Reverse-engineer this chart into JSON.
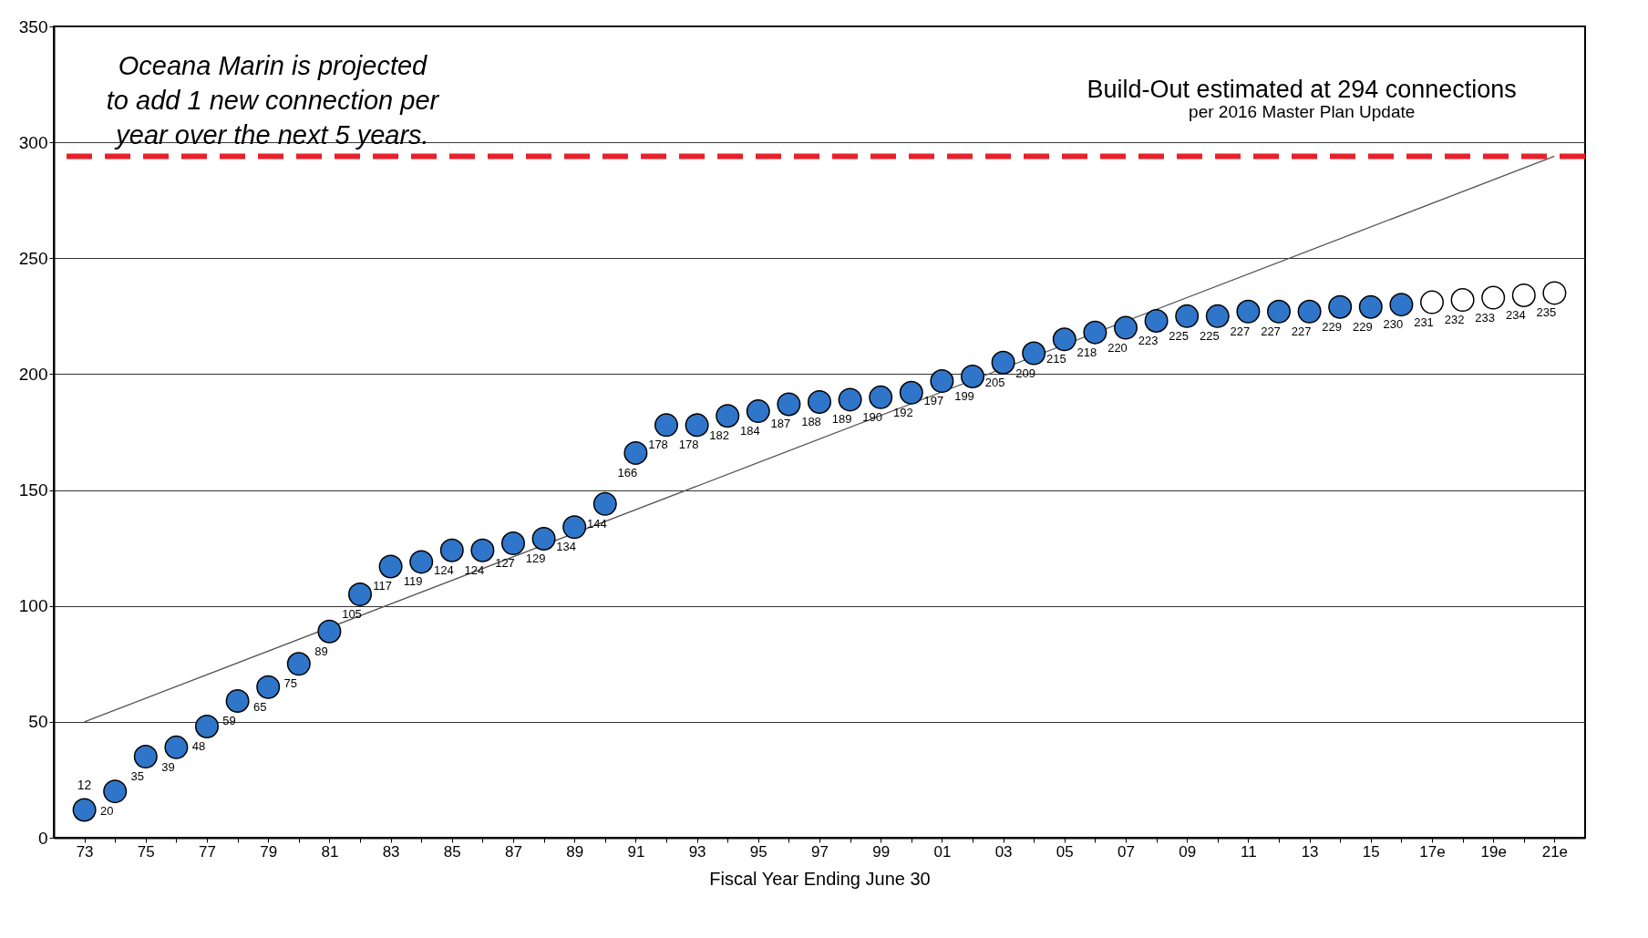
{
  "chart_data": {
    "type": "scatter",
    "xlabel": "Fiscal Year Ending June 30",
    "categories": [
      "73",
      null,
      "75",
      null,
      "77",
      null,
      "79",
      null,
      "81",
      null,
      "83",
      null,
      "85",
      null,
      "87",
      null,
      "89",
      null,
      "91",
      null,
      "93",
      null,
      "95",
      null,
      "97",
      null,
      "99",
      null,
      "01",
      null,
      "03",
      null,
      "05",
      null,
      "07",
      null,
      "09",
      null,
      "11",
      null,
      "13",
      null,
      "15",
      null,
      "17e",
      null,
      "19e",
      null,
      "21e"
    ],
    "series": [
      {
        "color": "#2f75c9",
        "values": [
          12,
          20,
          35,
          39,
          48,
          59,
          65,
          75,
          89,
          105,
          117,
          119,
          124,
          124,
          127,
          129,
          134,
          144,
          166,
          178,
          178,
          182,
          184,
          187,
          188,
          189,
          190,
          192,
          197,
          199,
          205,
          209,
          215,
          218,
          220,
          223,
          225,
          225,
          227,
          227,
          227,
          229,
          229,
          230,
          null,
          null,
          null,
          null,
          null
        ],
        "value_labels": [
          "12",
          "20",
          "35",
          "39",
          "48",
          "59",
          "65",
          "75",
          "89",
          "105",
          "117",
          "119",
          "124",
          "124",
          "127",
          "129",
          "134",
          "144",
          "166",
          "178",
          "178",
          "182",
          "184",
          "187",
          "188",
          "189",
          "190",
          "192",
          "197",
          "199",
          "205",
          "209",
          "215",
          "218",
          "220",
          "223",
          "225",
          "225",
          "227",
          "227",
          "227",
          "229",
          "229",
          "230",
          null,
          null,
          null,
          null,
          null
        ]
      },
      {
        "color": "#ffffff",
        "values": [
          null,
          null,
          null,
          null,
          null,
          null,
          null,
          null,
          null,
          null,
          null,
          null,
          null,
          null,
          null,
          null,
          null,
          null,
          null,
          null,
          null,
          null,
          null,
          null,
          null,
          null,
          null,
          null,
          null,
          null,
          null,
          null,
          null,
          null,
          null,
          null,
          null,
          null,
          null,
          null,
          null,
          null,
          null,
          null,
          231,
          232,
          233,
          234,
          235
        ],
        "value_labels": [
          null,
          null,
          null,
          null,
          null,
          null,
          null,
          null,
          null,
          null,
          null,
          null,
          null,
          null,
          null,
          null,
          null,
          null,
          null,
          null,
          null,
          null,
          null,
          null,
          null,
          null,
          null,
          null,
          null,
          null,
          null,
          null,
          null,
          null,
          null,
          null,
          null,
          null,
          null,
          null,
          null,
          null,
          null,
          null,
          "231",
          "232",
          "233",
          "234",
          "235"
        ]
      },
      {
        "type": "line",
        "color": "#555555",
        "marker": "none",
        "x": [
          "73",
          "21e"
        ],
        "values": [
          50,
          294
        ]
      }
    ],
    "ylim": [
      0,
      350
    ],
    "yticks": [
      0,
      50,
      100,
      150,
      200,
      250,
      300,
      350
    ],
    "grid": "y",
    "marker": "circle",
    "ref_lines": [
      {
        "axis": "y",
        "value": 294,
        "label": "Build-Out estimated at 294 connections",
        "color": "#e8202a",
        "line_style": "dashed"
      }
    ],
    "annotations": [
      "Oceana Marin is projected to add 1 new connection per year over the next 5 years.",
      "per 2016 Master Plan Update"
    ]
  }
}
